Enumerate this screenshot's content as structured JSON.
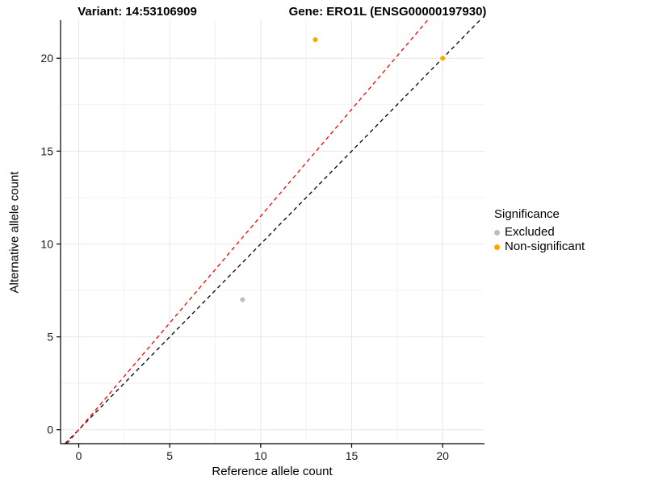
{
  "chart_data": {
    "type": "scatter",
    "title_left": "Variant: 14:53106909",
    "title_right": "Gene: ERO1L (ENSG00000197930)",
    "xlabel": "Reference allele count",
    "ylabel": "Alternative allele count",
    "xlim": [
      -1,
      22.3
    ],
    "ylim": [
      -0.75,
      22.05
    ],
    "xticks": [
      0,
      5,
      10,
      15,
      20
    ],
    "yticks": [
      0,
      5,
      10,
      15,
      20
    ],
    "xminor": [
      2.5,
      7.5,
      12.5,
      17.5
    ],
    "yminor": [
      2.5,
      7.5,
      12.5,
      17.5
    ],
    "grid": "major+minor",
    "legend_position": "right",
    "legend_title": "Significance",
    "series": [
      {
        "name": "Excluded",
        "color": "#BDBDBD",
        "points": [
          [
            9,
            7
          ]
        ]
      },
      {
        "name": "Non-significant",
        "color": "#FFA500",
        "points": [
          [
            13,
            21
          ],
          [
            20,
            20
          ]
        ]
      }
    ],
    "lines": [
      {
        "name": "identity-line",
        "slope": 1,
        "intercept": 0,
        "color": "#000000",
        "dash": "5 4"
      },
      {
        "name": "expected-ratio-line",
        "slope": 1.15,
        "intercept": 0,
        "color": "#FF0000",
        "dash": "5 4"
      }
    ],
    "colors": {
      "grid_major": "#E7E7E7",
      "grid_minor": "#F3F3F3",
      "axis": "#000000",
      "tick_label": "#1a1a1a"
    }
  }
}
